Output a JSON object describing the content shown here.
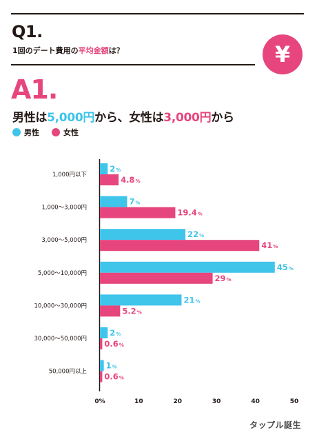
{
  "question": {
    "title": "Q1.",
    "subtitle_pre": "1回のデート費用の",
    "subtitle_highlight": "平均金額",
    "subtitle_post": "は？",
    "badge_symbol": "¥"
  },
  "answer": {
    "title": "A1.",
    "p1": "男性は",
    "v1": "5,000円",
    "p2": "から、女性は",
    "v2": "3,000円",
    "p3": "から"
  },
  "brand": "タップル誕生",
  "colors": {
    "male": "#3fc4ea",
    "female": "#e6457d",
    "text": "#231815"
  },
  "chart_data": {
    "type": "bar",
    "orientation": "horizontal",
    "categories": [
      "1,000円以下",
      "1,000～3,000円",
      "3,000～5,000円",
      "5,000～10,000円",
      "10,000～30,000円",
      "30,000～50,000円",
      "50,000円以上"
    ],
    "series": [
      {
        "name": "男性",
        "values": [
          2,
          7,
          22,
          45,
          21,
          2,
          1
        ],
        "labels": [
          "2",
          "7",
          "22",
          "45",
          "21",
          "2",
          "1"
        ]
      },
      {
        "name": "女性",
        "values": [
          4.8,
          19.4,
          41,
          29,
          5.2,
          0.6,
          0.6
        ],
        "labels": [
          "4.8",
          "19.4",
          "41",
          "29",
          "5.2",
          "0.6",
          "0.6"
        ]
      }
    ],
    "value_suffix": "%",
    "xlim": [
      0,
      50
    ],
    "ticks": [
      "0%",
      "10",
      "20",
      "30",
      "40",
      "50"
    ],
    "legend_placement": "top-left",
    "grid": false
  }
}
